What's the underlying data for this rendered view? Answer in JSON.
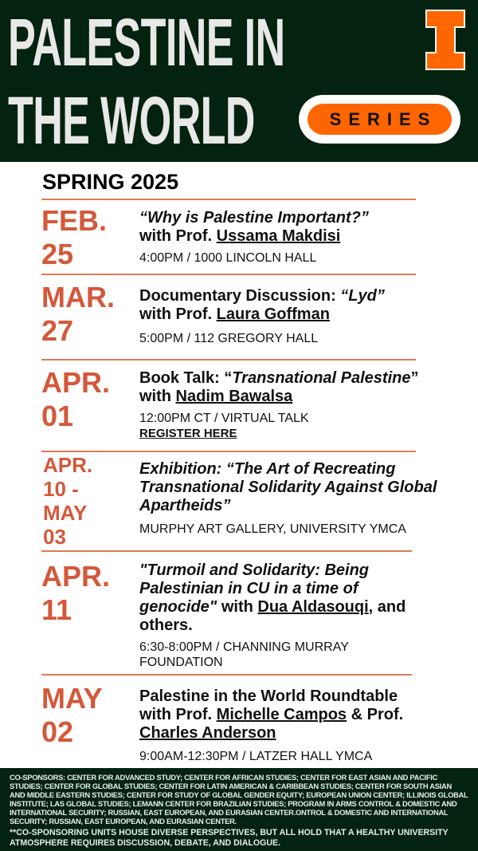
{
  "header": {
    "title_line1": "PALESTINE IN",
    "title_line2": "THE WORLD",
    "badge": "SERIES",
    "logo": "illinois-block-i",
    "colors": {
      "background": "#03220f",
      "accent": "#ff6600"
    }
  },
  "season": "SPRING 2025",
  "events": [
    {
      "date": [
        "FEB.",
        "25"
      ],
      "title_italic": "“Why is Palestine Important?”",
      "with": "with Prof. ",
      "speaker": "Ussama Makdisi",
      "details": "4:00PM / 1000 LINCOLN HALL"
    },
    {
      "date": [
        "MAR.",
        "27"
      ],
      "title_pre": "Documentary  Discussion: ",
      "title_italic": "“Lyd”",
      "with": "with Prof. ",
      "speaker": "Laura Goffman",
      "details": "5:00PM / 112 GREGORY HALL"
    },
    {
      "date": [
        "APR.",
        "01"
      ],
      "title_pre": "Book Talk: “",
      "title_italic": "Transnational Palestine",
      "title_post": "”",
      "with": "with ",
      "speaker": "Nadim Bawalsa",
      "details": "12:00PM CT / VIRTUAL TALK",
      "link": "REGISTER HERE"
    },
    {
      "date": [
        "APR.",
        "10 -",
        "MAY",
        "03"
      ],
      "title_italic": "Exhibition: “The Art of Recreating Transnational Solidarity Against Global Apartheids”",
      "details": "MURPHY ART GALLERY, UNIVERSITY YMCA"
    },
    {
      "date": [
        "APR.",
        "11"
      ],
      "title_italic": "\"Turmoil and Solidarity: Being Palestinian in CU in a time of genocide\"",
      "with": " with ",
      "speaker": "Dua Aldasouqi",
      "title_post": ", and others.",
      "details": "6:30-8:00PM / CHANNING MURRAY FOUNDATION"
    },
    {
      "date": [
        "MAY",
        "02"
      ],
      "title_pre": "Palestine in the World Roundtable with Prof. ",
      "speaker": "Michelle Campos",
      "mid": " & Prof. ",
      "speaker2": "Charles Anderson",
      "details": "9:00AM-12:30PM /  LATZER HALL YMCA"
    }
  ],
  "footer": {
    "cosponsors": "CO-SPONSORS: CENTER FOR ADVANCED STUDY; CENTER FOR AFRICAN STUDIES; CENTER FOR EAST ASIAN AND PACIFIC STUDIES; CENTER FOR GLOBAL STUDIES; CENTER FOR LATIN AMERICAN & CARIBBEAN STUDIES; CENTER FOR SOUTH ASIAN AND MIDDLE EASTERN STUDIES; CENTER FOR STUDY OF GLOBAL GENDER EQUITY; EUROPEAN UNION CENTER; ILLINOIS GLOBAL INSTITUTE; LAS GLOBAL STUDIES; LEMANN CENTER FOR BRAZILIAN STUDIES; PROGRAM IN ARMS CONTROL & DOMESTIC AND INTERNATIONAL SECURITY; RUSSIAN, EAST EUROPEAN, AND EURASIAN CENTER.ONTROL & DOMESTIC AND INTERNATIONAL SECURITY; RUSSIAN, EAST EUROPEAN, AND EURASIAN CENTER.",
    "disclaimer": "**CO-SPONSORING UNITS HOUSE DIVERSE PERSPECTIVES, BUT ALL HOLD THAT A HEALTHY UNIVERSITY ATMOSPHERE REQUIRES DISCUSSION, DEBATE, AND DIALOGUE."
  }
}
